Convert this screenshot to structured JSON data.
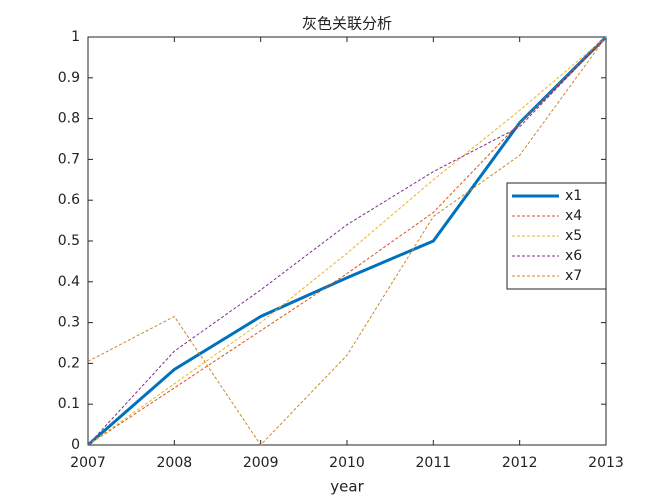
{
  "chart_data": {
    "type": "line",
    "title": "灰色关联分析",
    "xlabel": "year",
    "x": [
      2007,
      2008,
      2009,
      2010,
      2011,
      2012,
      2013
    ],
    "series": [
      {
        "name": "x1",
        "color": "#0072bd",
        "values": [
          0,
          0.185,
          0.315,
          0.41,
          0.5,
          0.79,
          1
        ]
      },
      {
        "name": "x4",
        "color": "#d95319",
        "values": [
          0,
          0.14,
          0.28,
          0.42,
          0.57,
          0.79,
          1
        ]
      },
      {
        "name": "x5",
        "color": "#edb120",
        "values": [
          0,
          0.15,
          0.3,
          0.47,
          0.65,
          0.82,
          1
        ]
      },
      {
        "name": "x6",
        "color": "#7e2f8e",
        "values": [
          0,
          0.23,
          0.38,
          0.54,
          0.67,
          0.78,
          1
        ]
      },
      {
        "name": "x7",
        "color": "#c98a2b",
        "values": [
          0.205,
          0.315,
          0,
          0.22,
          0.56,
          0.71,
          1
        ]
      }
    ],
    "xlim": [
      2007,
      2013
    ],
    "xticks": [
      2007,
      2008,
      2009,
      2010,
      2011,
      2012,
      2013
    ],
    "ylim": [
      0,
      1
    ],
    "yticks": [
      0,
      0.1,
      0.2,
      0.3,
      0.4,
      0.5,
      0.6,
      0.7,
      0.8,
      0.9,
      1
    ],
    "grid": false,
    "legend": "east"
  }
}
